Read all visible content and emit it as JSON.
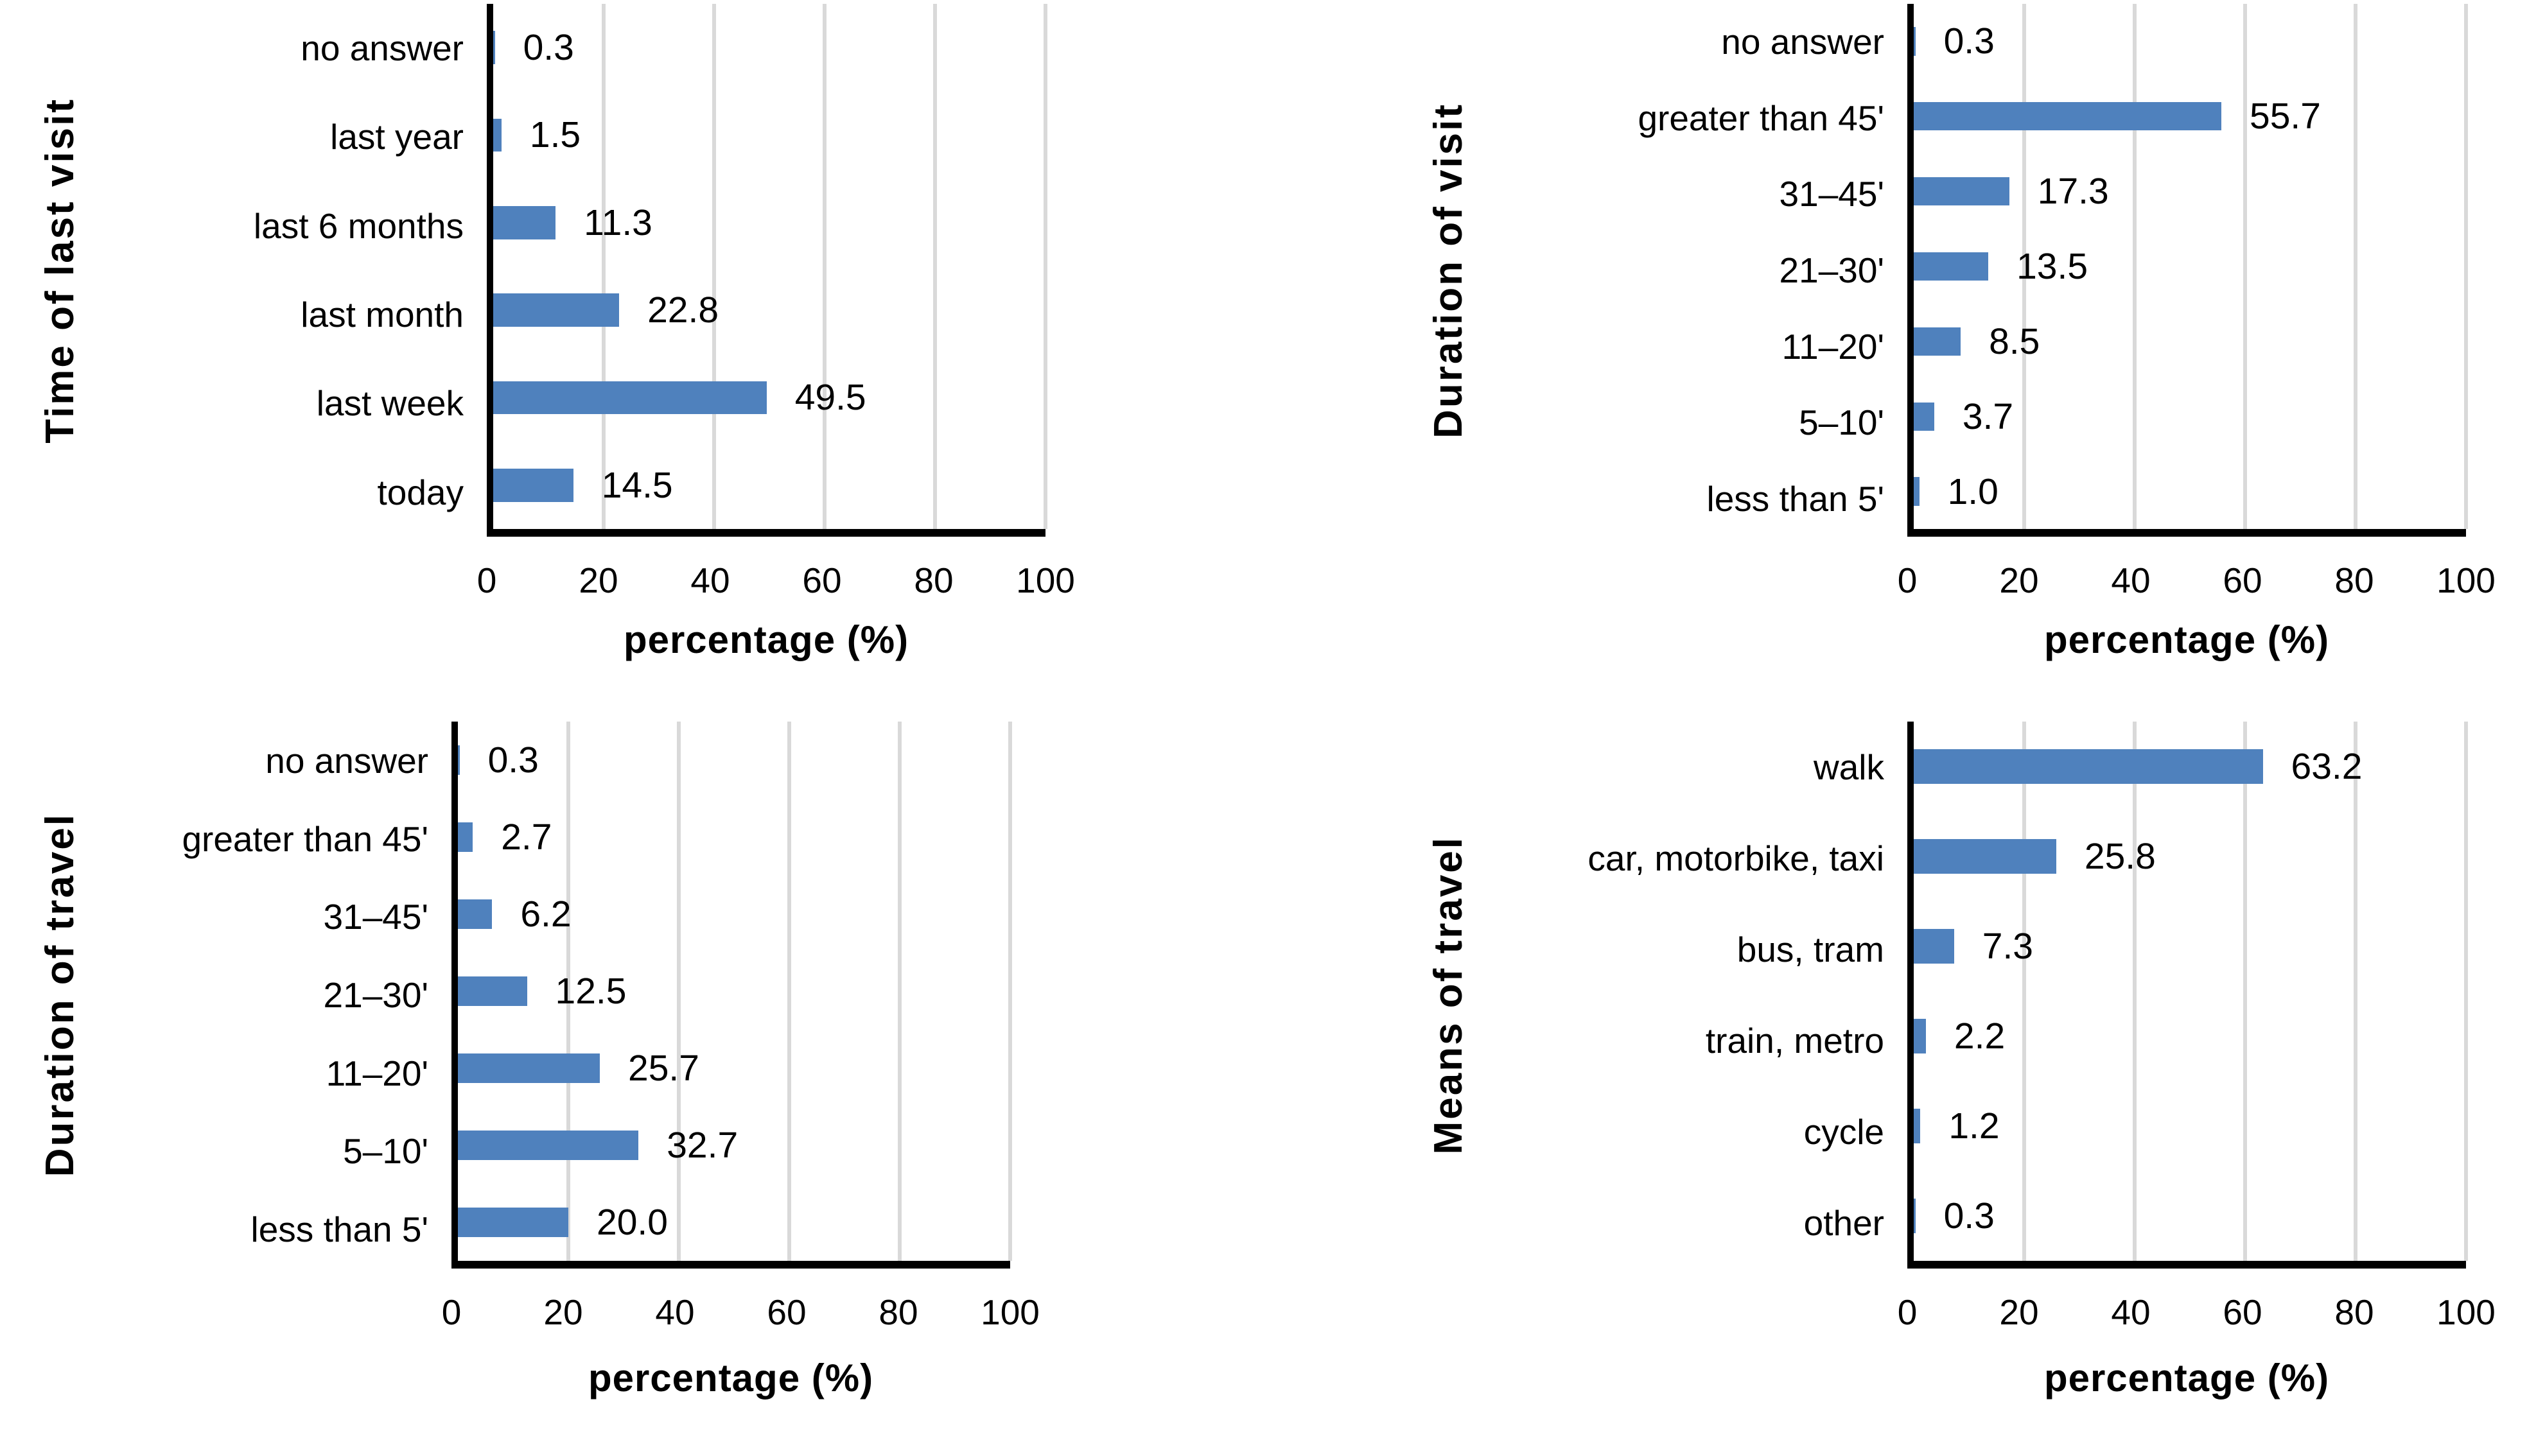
{
  "figure": {
    "background": "#FFFFFF"
  },
  "chart_data": [
    {
      "type": "bar",
      "orientation": "horizontal",
      "ylabel": "Time of last visit",
      "xlabel": "percentage (%)",
      "categories": [
        "no answer",
        "last year",
        "last 6 months",
        "last month",
        "last week",
        "today"
      ],
      "values": [
        0.3,
        1.5,
        11.3,
        22.8,
        49.5,
        14.5
      ],
      "xlim": [
        0,
        100
      ],
      "xticks": [
        0,
        20,
        40,
        60,
        80,
        100
      ],
      "grid": true,
      "legend": false,
      "bar_color": "#4F81BD",
      "gridline_color": "#D9D9D9",
      "axis_color": "#000000"
    },
    {
      "type": "bar",
      "orientation": "horizontal",
      "ylabel": "Duration of visit",
      "xlabel": "percentage (%)",
      "categories": [
        "no answer",
        "greater than 45'",
        "31–45'",
        "21–30'",
        "11–20'",
        "5–10'",
        "less than 5'"
      ],
      "values": [
        0.3,
        55.7,
        17.3,
        13.5,
        8.5,
        3.7,
        1.0
      ],
      "xlim": [
        0,
        100
      ],
      "xticks": [
        0,
        20,
        40,
        60,
        80,
        100
      ],
      "grid": true,
      "legend": false,
      "bar_color": "#4F81BD",
      "gridline_color": "#D9D9D9",
      "axis_color": "#000000"
    },
    {
      "type": "bar",
      "orientation": "horizontal",
      "ylabel": "Duration of travel",
      "xlabel": "percentage (%)",
      "categories": [
        "no answer",
        "greater than 45'",
        "31–45'",
        "21–30'",
        "11–20'",
        "5–10'",
        "less than 5'"
      ],
      "values": [
        0.3,
        2.7,
        6.2,
        12.5,
        25.7,
        32.7,
        20.0
      ],
      "xlim": [
        0,
        100
      ],
      "xticks": [
        0,
        20,
        40,
        60,
        80,
        100
      ],
      "grid": true,
      "legend": false,
      "bar_color": "#4F81BD",
      "gridline_color": "#D9D9D9",
      "axis_color": "#000000"
    },
    {
      "type": "bar",
      "orientation": "horizontal",
      "ylabel": "Means of travel",
      "xlabel": "percentage (%)",
      "categories": [
        "walk",
        "car, motorbike, taxi",
        "bus, tram",
        "train, metro",
        "cycle",
        "other"
      ],
      "values": [
        63.2,
        25.8,
        7.3,
        2.2,
        1.2,
        0.3
      ],
      "xlim": [
        0,
        100
      ],
      "xticks": [
        0,
        20,
        40,
        60,
        80,
        100
      ],
      "grid": true,
      "legend": false,
      "bar_color": "#4F81BD",
      "gridline_color": "#D9D9D9",
      "axis_color": "#000000"
    }
  ]
}
